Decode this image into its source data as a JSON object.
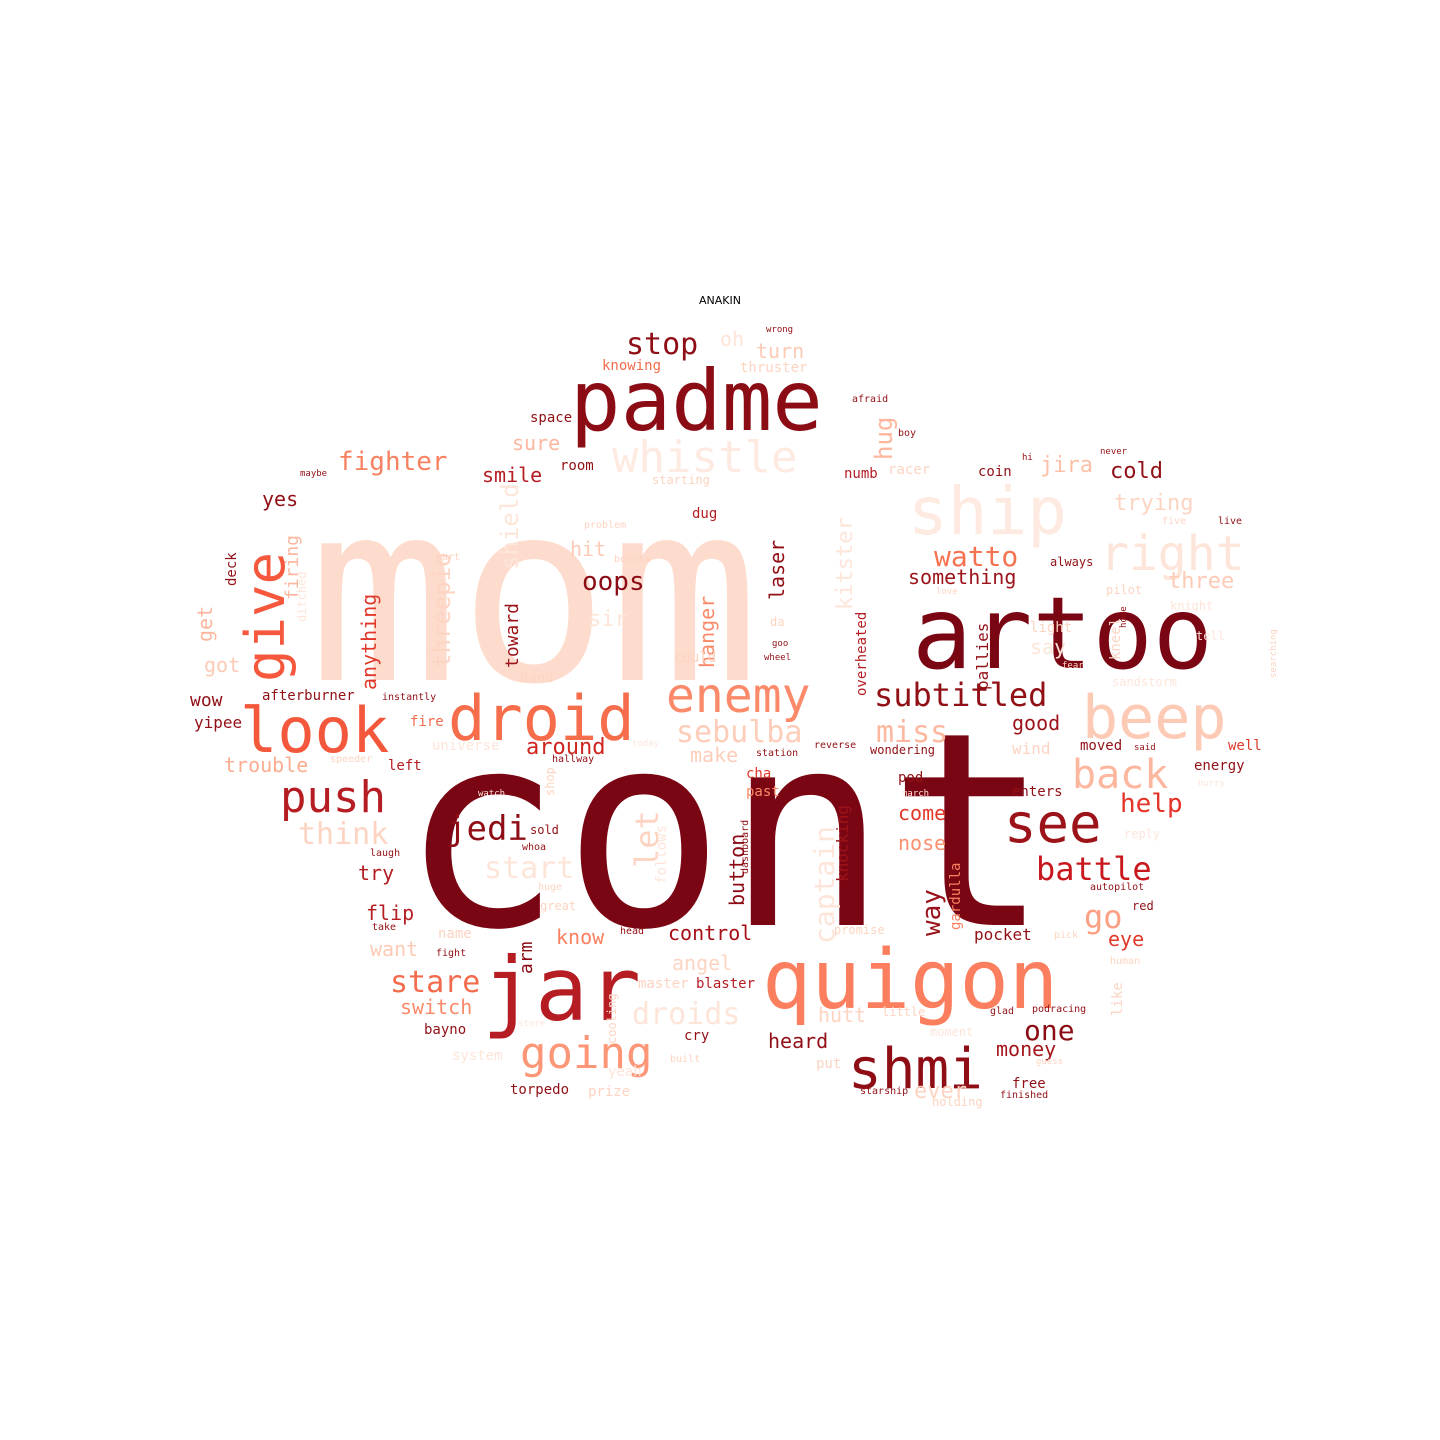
{
  "title": "ANAKIN",
  "palette": [
    "#fee0d2",
    "#fcbba1",
    "#fc9272",
    "#fb6a4a",
    "#ef3b2c",
    "#cb181d",
    "#a50f15",
    "#67000d"
  ],
  "words": [
    {
      "text": "cont",
      "color": "#7b0613"
    },
    {
      "text": "mom",
      "color": "#fddccd"
    },
    {
      "text": "artoo",
      "color": "#7b0613"
    },
    {
      "text": "padme",
      "color": "#8b0c14"
    },
    {
      "text": "jar",
      "color": "#b51d23"
    },
    {
      "text": "quigon",
      "color": "#fb7e5e"
    },
    {
      "text": "ship",
      "color": "#feeae1"
    },
    {
      "text": "droid",
      "color": "#f66d4b"
    },
    {
      "text": "beep",
      "color": "#fdcab5"
    },
    {
      "text": "enemy",
      "color": "#fb8a6a"
    },
    {
      "text": "look",
      "color": "#f4583c"
    },
    {
      "text": "shmi",
      "color": "#8f0e16"
    },
    {
      "text": "give",
      "color": "#f5583c"
    },
    {
      "text": "right",
      "color": "#fee5da"
    },
    {
      "text": "whistle",
      "color": "#feeae1"
    },
    {
      "text": "see",
      "color": "#9c1319"
    },
    {
      "text": "going",
      "color": "#fc9677"
    },
    {
      "text": "push",
      "color": "#b51d23"
    },
    {
      "text": "back",
      "color": "#fcb79e"
    },
    {
      "text": "subtitled",
      "color": "#911016"
    },
    {
      "text": "battle",
      "color": "#c9181d"
    },
    {
      "text": "watto",
      "color": "#f67352"
    },
    {
      "text": "stop",
      "color": "#8f0e16"
    },
    {
      "text": "oops",
      "color": "#8b0c14"
    },
    {
      "text": "sebulba",
      "color": "#fdcdb9"
    },
    {
      "text": "think",
      "color": "#fdd4c2"
    },
    {
      "text": "miss",
      "color": "#fcb79e"
    },
    {
      "text": "jedi",
      "color": "#8f0e16"
    },
    {
      "text": "stare",
      "color": "#f26b4d"
    },
    {
      "text": "droids",
      "color": "#fee5da"
    },
    {
      "text": "fighter",
      "color": "#f88161"
    },
    {
      "text": "let",
      "color": "#fdd4c2"
    },
    {
      "text": "captain",
      "color": "#fee5da"
    },
    {
      "text": "help",
      "color": "#e63328"
    },
    {
      "text": "go",
      "color": "#fca083"
    },
    {
      "text": "one",
      "color": "#8b0c14"
    },
    {
      "text": "around",
      "color": "#d0241f"
    },
    {
      "text": "way",
      "color": "#99121a"
    },
    {
      "text": "start",
      "color": "#fee5da"
    },
    {
      "text": "hug",
      "color": "#fcb79e"
    },
    {
      "text": "cold",
      "color": "#911016"
    },
    {
      "text": "trying",
      "color": "#fdd4c2"
    },
    {
      "text": "jira",
      "color": "#fcbfa7"
    },
    {
      "text": "three",
      "color": "#fdcab5"
    },
    {
      "text": "something",
      "color": "#9c1319"
    },
    {
      "text": "trouble",
      "color": "#fcad91"
    },
    {
      "text": "make",
      "color": "#fdcdb9"
    },
    {
      "text": "good",
      "color": "#9c1319"
    },
    {
      "text": "come",
      "color": "#e0392a"
    },
    {
      "text": "nose",
      "color": "#fb8f6f"
    },
    {
      "text": "control",
      "color": "#a50f15"
    },
    {
      "text": "angel",
      "color": "#fdd4c2"
    },
    {
      "text": "heard",
      "color": "#911016"
    },
    {
      "text": "money",
      "color": "#a3161c"
    },
    {
      "text": "ever",
      "color": "#fdd4c2"
    },
    {
      "text": "hutt",
      "color": "#fdd4c2"
    },
    {
      "text": "switch",
      "color": "#fb8a6a"
    },
    {
      "text": "know",
      "color": "#fb7e5e"
    },
    {
      "text": "want",
      "color": "#fdcab5"
    },
    {
      "text": "flip",
      "color": "#b51d23"
    },
    {
      "text": "try",
      "color": "#b51d23"
    },
    {
      "text": "yes",
      "color": "#911016"
    },
    {
      "text": "smile",
      "color": "#b51d23"
    },
    {
      "text": "sure",
      "color": "#fcb79e"
    },
    {
      "text": "oh",
      "color": "#fee5da"
    },
    {
      "text": "turn",
      "color": "#fdcab5"
    },
    {
      "text": "hit",
      "color": "#fdcab5"
    },
    {
      "text": "sir",
      "color": "#fee5da"
    },
    {
      "text": "got",
      "color": "#fdcab5"
    },
    {
      "text": "get",
      "color": "#fcb79e"
    },
    {
      "text": "wow",
      "color": "#911016"
    },
    {
      "text": "yipee",
      "color": "#911016"
    },
    {
      "text": "eye",
      "color": "#e0392a"
    },
    {
      "text": "say",
      "color": "#fee5da"
    },
    {
      "text": "wind",
      "color": "#fdd4c2"
    },
    {
      "text": "pocket",
      "color": "#911016"
    },
    {
      "text": "anything",
      "color": "#e0392a"
    },
    {
      "text": "toward",
      "color": "#9c1319"
    },
    {
      "text": "laser",
      "color": "#911016"
    },
    {
      "text": "hanger",
      "color": "#fb8a6a"
    },
    {
      "text": "button",
      "color": "#8b0c14"
    },
    {
      "text": "knocking",
      "color": "#9c1319"
    },
    {
      "text": "gardulla",
      "color": "#f88161"
    },
    {
      "text": "pallies",
      "color": "#911016"
    },
    {
      "text": "arm",
      "color": "#8b0c14"
    },
    {
      "text": "firing",
      "color": "#fcb79e"
    },
    {
      "text": "deck",
      "color": "#911016"
    },
    {
      "text": "shield",
      "color": "#fee5da"
    },
    {
      "text": "threepio",
      "color": "#fdd4c2"
    },
    {
      "text": "kitster",
      "color": "#fee5da"
    },
    {
      "text": "overheated",
      "color": "#b51d23"
    },
    {
      "text": "afterburner",
      "color": "#911016"
    },
    {
      "text": "knowing",
      "color": "#f26b4d"
    },
    {
      "text": "thruster",
      "color": "#fdd4c2"
    },
    {
      "text": "space",
      "color": "#911016"
    },
    {
      "text": "room",
      "color": "#911016"
    },
    {
      "text": "dug",
      "color": "#b51d23"
    },
    {
      "text": "numb",
      "color": "#b51d23"
    },
    {
      "text": "racer",
      "color": "#fdd4c2"
    },
    {
      "text": "coin",
      "color": "#911016"
    },
    {
      "text": "starting",
      "color": "#fdd4c2"
    },
    {
      "text": "fire",
      "color": "#f26b4d"
    },
    {
      "text": "left",
      "color": "#b51d23"
    },
    {
      "text": "cha",
      "color": "#e0392a"
    },
    {
      "text": "past",
      "color": "#fb8a6a"
    },
    {
      "text": "pod",
      "color": "#911016"
    },
    {
      "text": "enters",
      "color": "#911016"
    },
    {
      "text": "energy",
      "color": "#911016"
    },
    {
      "text": "moved",
      "color": "#911016"
    },
    {
      "text": "well",
      "color": "#e0392a"
    },
    {
      "text": "light",
      "color": "#fdd4c2"
    },
    {
      "text": "kneel",
      "color": "#fdd4c2"
    },
    {
      "text": "could",
      "color": "#fdd4c2"
    },
    {
      "text": "hand",
      "color": "#fdd4c2"
    },
    {
      "text": "universe",
      "color": "#fee5da"
    },
    {
      "text": "sold",
      "color": "#911016"
    },
    {
      "text": "follows",
      "color": "#fee5da"
    },
    {
      "text": "cry",
      "color": "#911016"
    },
    {
      "text": "put",
      "color": "#fdd4c2"
    },
    {
      "text": "torpedo",
      "color": "#911016"
    },
    {
      "text": "prize",
      "color": "#fdd4c2"
    },
    {
      "text": "bayno",
      "color": "#911016"
    },
    {
      "text": "master",
      "color": "#fdd4c2"
    },
    {
      "text": "blaster",
      "color": "#b51d23"
    },
    {
      "text": "great",
      "color": "#fdd4c2"
    },
    {
      "text": "cooling",
      "color": "#fdd4c2"
    },
    {
      "text": "name",
      "color": "#fdd4c2"
    },
    {
      "text": "little",
      "color": "#fdd4c2"
    },
    {
      "text": "promise",
      "color": "#fdd4c2"
    },
    {
      "text": "like",
      "color": "#fdd4c2"
    },
    {
      "text": "free",
      "color": "#911016"
    },
    {
      "text": "moment",
      "color": "#fee5da"
    },
    {
      "text": "red",
      "color": "#911016"
    },
    {
      "text": "wondering",
      "color": "#911016"
    },
    {
      "text": "reverse",
      "color": "#911016"
    },
    {
      "text": "station",
      "color": "#911016"
    },
    {
      "text": "hallway",
      "color": "#911016"
    },
    {
      "text": "speeder",
      "color": "#fdd4c2"
    },
    {
      "text": "instantly",
      "color": "#911016"
    },
    {
      "text": "sandstorm",
      "color": "#fee5da"
    },
    {
      "text": "reply",
      "color": "#fee5da"
    },
    {
      "text": "autopilot",
      "color": "#911016"
    },
    {
      "text": "starship",
      "color": "#911016"
    },
    {
      "text": "finished",
      "color": "#911016"
    },
    {
      "text": "podracing",
      "color": "#911016"
    },
    {
      "text": "glad",
      "color": "#911016"
    },
    {
      "text": "fight",
      "color": "#911016"
    },
    {
      "text": "pick",
      "color": "#fdd4c2"
    },
    {
      "text": "human",
      "color": "#fdd4c2"
    },
    {
      "text": "head",
      "color": "#911016"
    },
    {
      "text": "take",
      "color": "#911016"
    },
    {
      "text": "laugh",
      "color": "#911016"
    },
    {
      "text": "whoa",
      "color": "#911016"
    },
    {
      "text": "huge",
      "color": "#fdd4c2"
    },
    {
      "text": "dashboard",
      "color": "#911016"
    },
    {
      "text": "shop",
      "color": "#fdd4c2"
    },
    {
      "text": "boonta",
      "color": "#fdd4c2"
    },
    {
      "text": "part",
      "color": "#fdd4c2"
    },
    {
      "text": "problem",
      "color": "#fdd4c2"
    },
    {
      "text": "maybe",
      "color": "#911016"
    },
    {
      "text": "afraid",
      "color": "#911016"
    },
    {
      "text": "boy",
      "color": "#911016"
    },
    {
      "text": "wrong",
      "color": "#911016"
    },
    {
      "text": "hi",
      "color": "#911016"
    },
    {
      "text": "never",
      "color": "#911016"
    },
    {
      "text": "five",
      "color": "#fdd4c2"
    },
    {
      "text": "live",
      "color": "#911016"
    },
    {
      "text": "always",
      "color": "#911016"
    },
    {
      "text": "pilot",
      "color": "#fdd4c2"
    },
    {
      "text": "said",
      "color": "#911016"
    },
    {
      "text": "wheel",
      "color": "#911016"
    },
    {
      "text": "goo",
      "color": "#911016"
    },
    {
      "text": "da",
      "color": "#fdd4c2"
    },
    {
      "text": "love",
      "color": "#fdd4c2"
    },
    {
      "text": "searching",
      "color": "#fdd4c2"
    },
    {
      "text": "home",
      "color": "#911016"
    },
    {
      "text": "fear",
      "color": "#fdd4c2"
    },
    {
      "text": "system",
      "color": "#fee5da"
    },
    {
      "text": "built",
      "color": "#fdd4c2"
    },
    {
      "text": "guess",
      "color": "#fdd4c2"
    },
    {
      "text": "yeah",
      "color": "#fee5da"
    },
    {
      "text": "holding",
      "color": "#fdd4c2"
    },
    {
      "text": "today",
      "color": "#fee5da"
    },
    {
      "text": "watch",
      "color": "#fee5da"
    },
    {
      "text": "march",
      "color": "#fee5da"
    },
    {
      "text": "ditched",
      "color": "#fee5da"
    },
    {
      "text": "tell",
      "color": "#fee5da"
    },
    {
      "text": "store",
      "color": "#fee5da"
    },
    {
      "text": "knight",
      "color": "#fee5da"
    },
    {
      "text": "hurry",
      "color": "#fee5da"
    }
  ]
}
